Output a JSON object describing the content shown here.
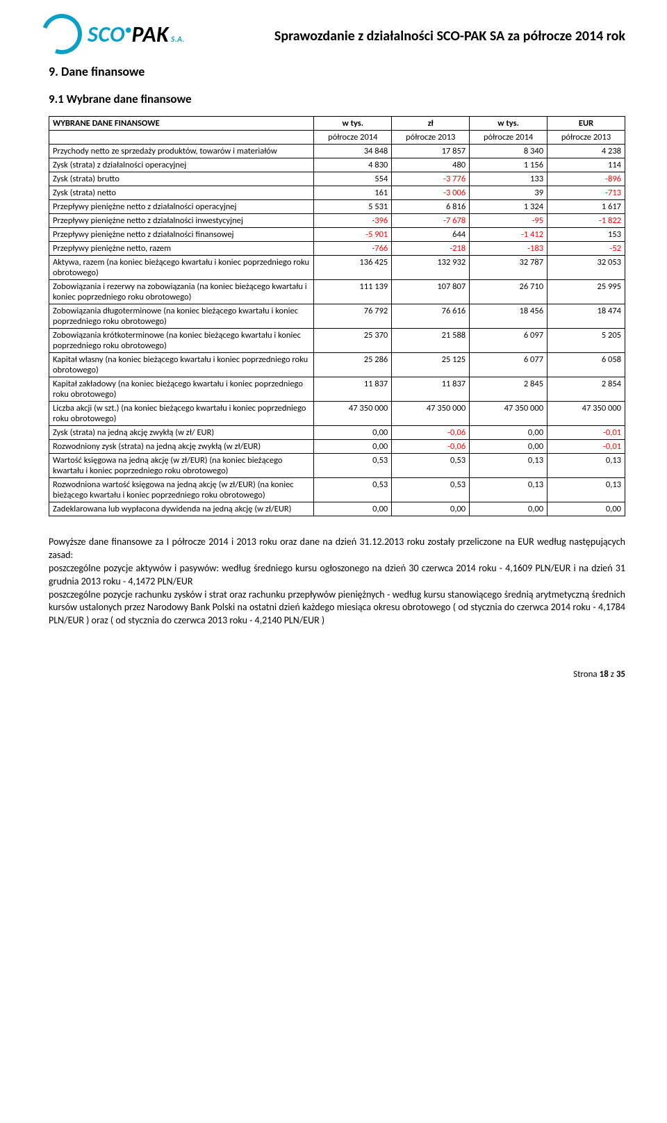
{
  "logo": {
    "part1": "SCO",
    "dot": "•",
    "part2": "PAK",
    "suffix": "S.A."
  },
  "header_title": "Sprawozdanie z działalności SCO-PAK SA za półrocze 2014 rok",
  "section_num": "9. Dane finansowe",
  "subsection": "9.1 Wybrane dane finansowe",
  "table": {
    "top_header": {
      "c1": "WYBRANE DANE FINANSOWE",
      "c2": "w tys.",
      "c3": "zł",
      "c4": "w tys.",
      "c5": "EUR"
    },
    "sub_header": {
      "c2": "półrocze 2014",
      "c3": "półrocze 2013",
      "c4": "półrocze 2014",
      "c5": "półrocze 2013"
    },
    "rows": [
      {
        "label": "Przychody netto ze sprzedaży produktów, towarów i materiałów",
        "v": [
          {
            "t": "34 848"
          },
          {
            "t": "17 857"
          },
          {
            "t": "8 340"
          },
          {
            "t": "4 238"
          }
        ]
      },
      {
        "label": "Zysk (strata) z działalności operacyjnej",
        "v": [
          {
            "t": "4 830"
          },
          {
            "t": "480"
          },
          {
            "t": "1 156"
          },
          {
            "t": "114"
          }
        ]
      },
      {
        "label": "Zysk (strata) brutto",
        "v": [
          {
            "t": "554"
          },
          {
            "t": "-3 776",
            "n": true
          },
          {
            "t": "133"
          },
          {
            "t": "-896",
            "n": true
          }
        ]
      },
      {
        "label": "Zysk (strata) netto",
        "v": [
          {
            "t": "161"
          },
          {
            "t": "-3 006",
            "n": true
          },
          {
            "t": "39"
          },
          {
            "t": "-713",
            "n": true
          }
        ]
      },
      {
        "label": "Przepływy pieniężne netto z działalności operacyjnej",
        "v": [
          {
            "t": "5 531"
          },
          {
            "t": "6 816"
          },
          {
            "t": "1 324"
          },
          {
            "t": "1 617"
          }
        ]
      },
      {
        "label": "Przepływy pieniężne netto z działalności inwestycyjnej",
        "v": [
          {
            "t": "-396",
            "n": true
          },
          {
            "t": "-7 678",
            "n": true
          },
          {
            "t": "-95",
            "n": true
          },
          {
            "t": "-1 822",
            "n": true
          }
        ]
      },
      {
        "label": "Przepływy pieniężne netto z działalności finansowej",
        "v": [
          {
            "t": "-5 901",
            "n": true
          },
          {
            "t": "644"
          },
          {
            "t": "-1 412",
            "n": true
          },
          {
            "t": "153"
          }
        ]
      },
      {
        "label": "Przepływy pieniężne netto, razem",
        "v": [
          {
            "t": "-766",
            "n": true
          },
          {
            "t": "-218",
            "n": true
          },
          {
            "t": "-183",
            "n": true
          },
          {
            "t": "-52",
            "n": true
          }
        ]
      },
      {
        "label": "Aktywa, razem (na koniec bieżącego kwartału i koniec poprzedniego roku obrotowego)",
        "v": [
          {
            "t": "136 425"
          },
          {
            "t": "132 932"
          },
          {
            "t": "32 787"
          },
          {
            "t": "32 053"
          }
        ]
      },
      {
        "label": "Zobowiązania i rezerwy na zobowiązania (na koniec bieżącego kwartału i koniec poprzedniego roku obrotowego)",
        "v": [
          {
            "t": "111 139"
          },
          {
            "t": "107 807"
          },
          {
            "t": "26 710"
          },
          {
            "t": "25 995"
          }
        ]
      },
      {
        "label": "Zobowiązania długoterminowe (na koniec bieżącego kwartału i koniec poprzedniego roku obrotowego)",
        "v": [
          {
            "t": "76 792"
          },
          {
            "t": "76 616"
          },
          {
            "t": "18 456"
          },
          {
            "t": "18 474"
          }
        ]
      },
      {
        "label": "Zobowiązania krótkoterminowe (na koniec bieżącego kwartału i koniec poprzedniego roku obrotowego)",
        "v": [
          {
            "t": "25 370"
          },
          {
            "t": "21 588"
          },
          {
            "t": "6 097"
          },
          {
            "t": "5 205"
          }
        ]
      },
      {
        "label": "Kapitał własny (na koniec bieżącego kwartału i koniec poprzedniego roku obrotowego)",
        "v": [
          {
            "t": "25 286"
          },
          {
            "t": "25 125"
          },
          {
            "t": "6 077"
          },
          {
            "t": "6 058"
          }
        ]
      },
      {
        "label": "Kapitał zakładowy (na koniec bieżącego kwartału i koniec poprzedniego roku obrotowego)",
        "v": [
          {
            "t": "11 837"
          },
          {
            "t": "11 837"
          },
          {
            "t": "2 845"
          },
          {
            "t": "2 854"
          }
        ]
      },
      {
        "label": "Liczba akcji (w szt.) (na koniec bieżącego kwartału i koniec poprzedniego roku obrotowego)",
        "v": [
          {
            "t": "47 350 000"
          },
          {
            "t": "47 350 000"
          },
          {
            "t": "47 350 000"
          },
          {
            "t": "47 350 000"
          }
        ]
      },
      {
        "label": "Zysk (strata) na jedną akcję zwykłą (w zł/ EUR)",
        "v": [
          {
            "t": "0,00"
          },
          {
            "t": "-0,06",
            "n": true
          },
          {
            "t": "0,00"
          },
          {
            "t": "-0,01",
            "n": true
          }
        ]
      },
      {
        "label": "Rozwodniony zysk (strata) na jedną akcję zwykłą (w zł/EUR)",
        "v": [
          {
            "t": "0,00"
          },
          {
            "t": "-0,06",
            "n": true
          },
          {
            "t": "0,00"
          },
          {
            "t": "-0,01",
            "n": true
          }
        ]
      },
      {
        "label": "Wartość księgowa na jedną akcję (w zł/EUR) (na koniec bieżącego kwartału i koniec poprzedniego roku obrotowego)",
        "v": [
          {
            "t": "0,53"
          },
          {
            "t": "0,53"
          },
          {
            "t": "0,13"
          },
          {
            "t": "0,13"
          }
        ]
      },
      {
        "label": "Rozwodniona wartość księgowa na jedną akcję (w zł/EUR) (na koniec bieżącego kwartału i koniec poprzedniego roku obrotowego)",
        "v": [
          {
            "t": "0,53"
          },
          {
            "t": "0,53"
          },
          {
            "t": "0,13"
          },
          {
            "t": "0,13"
          }
        ]
      },
      {
        "label": "Zadeklarowana lub wypłacona dywidenda na jedną akcję (w zł/EUR)",
        "v": [
          {
            "t": "0,00"
          },
          {
            "t": "0,00"
          },
          {
            "t": "0,00"
          },
          {
            "t": "0,00"
          }
        ]
      }
    ],
    "col_widths": [
      "46%",
      "13.5%",
      "13.5%",
      "13.5%",
      "13.5%"
    ],
    "neg_color": "#ff0000"
  },
  "paragraph": "Powyższe dane finansowe za I półrocze 2014 i 2013 roku oraz dane na dzień 31.12.2013 roku zostały przeliczone na EUR według następujących zasad:\nposzczególne pozycje aktywów i pasywów: według średniego kursu ogłoszonego na dzień 30 czerwca 2014 roku - 4,1609 PLN/EUR  i na dzień 31 grudnia 2013 roku - 4,1472 PLN/EUR\nposzczególne pozycje rachunku zysków i strat oraz rachunku przepływów pieniężnych - według kursu stanowiącego średnią arytmetyczną średnich kursów ustalonych przez Narodowy Bank Polski na ostatni dzień każdego miesiąca okresu obrotowego ( od stycznia do czerwca 2014 roku - 4,1784 PLN/EUR ) oraz ( od stycznia do czerwca 2013 roku - 4,2140 PLN/EUR )",
  "footer": "Strona 18 z 35"
}
